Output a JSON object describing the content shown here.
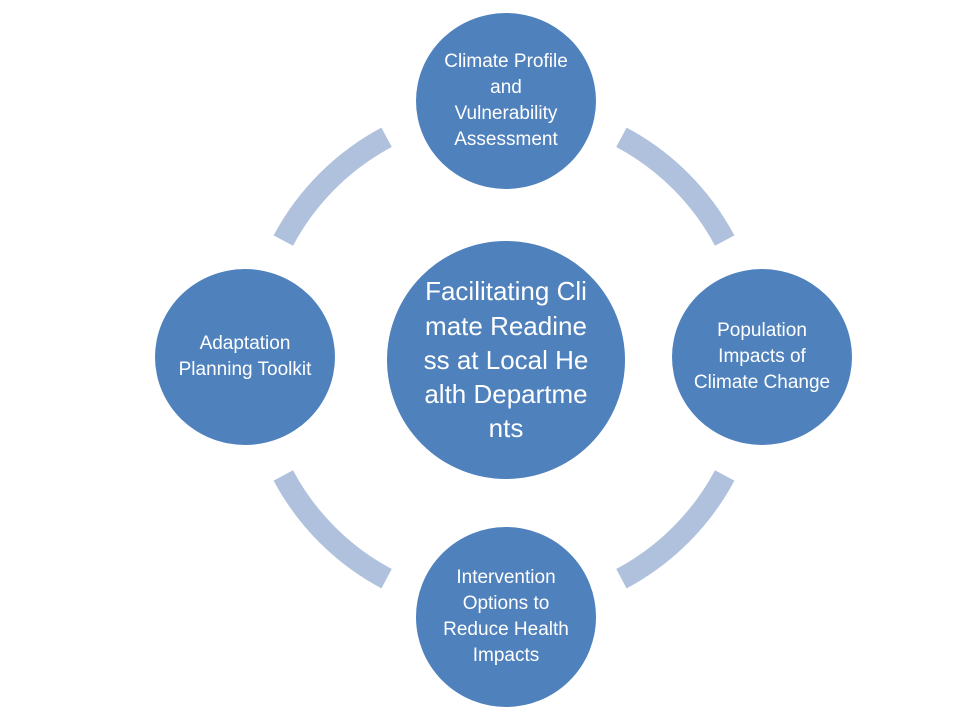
{
  "diagram": {
    "center": {
      "label": "Facilitating Climate Readiness at Local Health Departments"
    },
    "nodes": [
      {
        "label": "Climate Profile and Vulnerability Assessment"
      },
      {
        "label": "Population Impacts of Climate Change"
      },
      {
        "label": "Intervention Options to Reduce Health Impacts"
      },
      {
        "label": "Adaptation Planning Toolkit"
      }
    ]
  },
  "colors": {
    "node_fill": "#4f81bd",
    "ring": "#b0c1de",
    "node_border": "#ffffff",
    "text": "#ffffff"
  }
}
